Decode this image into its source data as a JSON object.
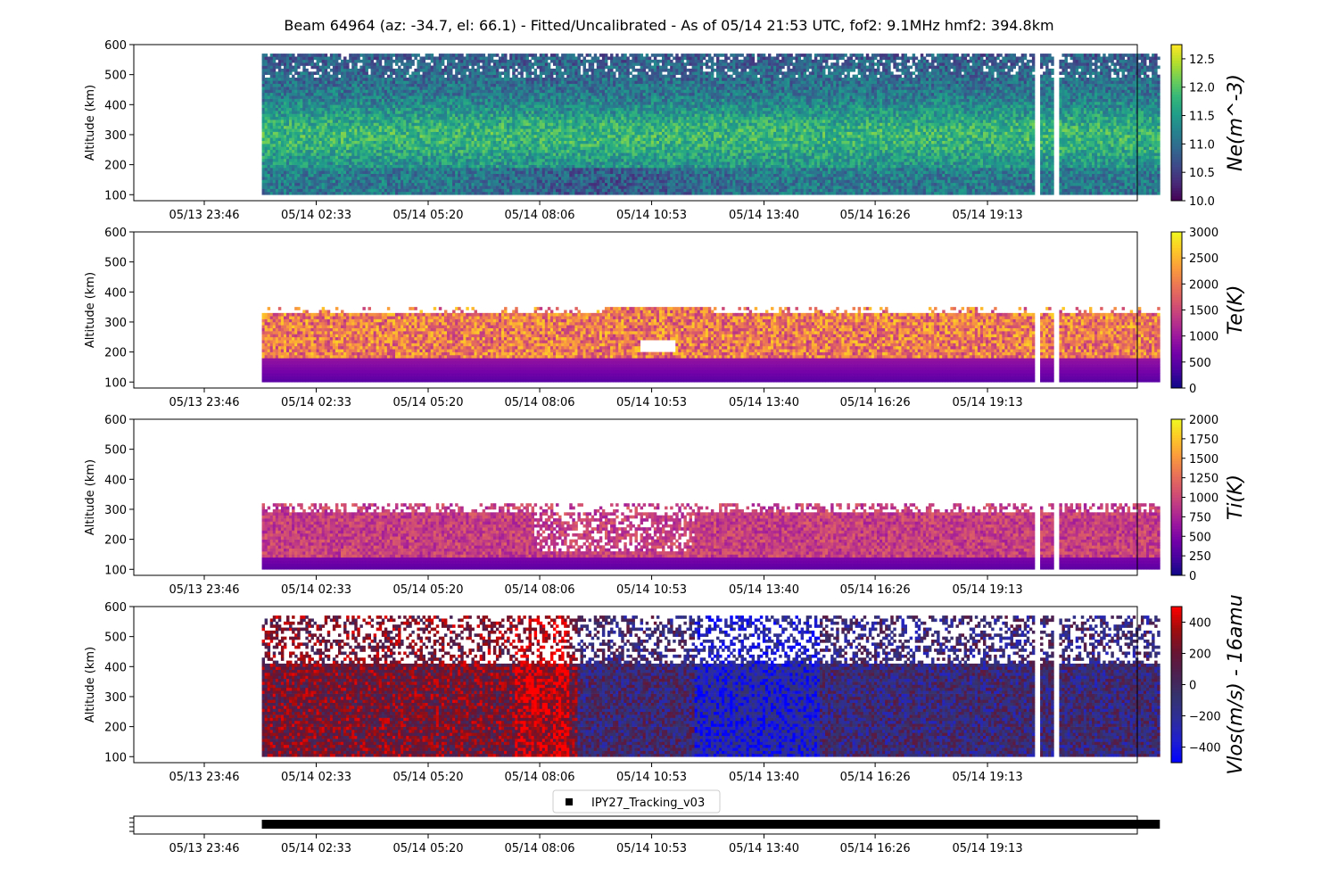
{
  "title": "Beam 64964 (az: -34.7, el: 66.1) - Fitted/Uncalibrated - As of 05/14 21:53 UTC, fof2: 9.1MHz  hmf2: 394.8km",
  "colors": {
    "viridis": [
      "#440154",
      "#482878",
      "#3e4989",
      "#31688e",
      "#26828e",
      "#1f9e89",
      "#35b779",
      "#6ece58",
      "#b5de2b",
      "#fde725"
    ],
    "plasma": [
      "#0d0887",
      "#46039f",
      "#7201a8",
      "#9c179e",
      "#bd3786",
      "#d8576b",
      "#ed7953",
      "#fb9f3a",
      "#fdca26",
      "#f0f921"
    ],
    "seismic_dark": [
      "#0000ff",
      "#1f1fd0",
      "#2e2e99",
      "#35336e",
      "#4d2050",
      "#6a1431",
      "#a00d0d",
      "#ff0000"
    ]
  },
  "chart_data": [
    {
      "type": "heatmap",
      "id": "ne",
      "ylabel": "Altitude (km)",
      "ylim": [
        80,
        600
      ],
      "yticks": [
        100,
        200,
        300,
        400,
        500,
        600
      ],
      "x_tick_labels": [
        "05/13 23:46",
        "05/14 02:33",
        "05/14 05:20",
        "05/14 08:06",
        "05/14 10:53",
        "05/14 13:40",
        "05/14 16:26",
        "05/14 19:13"
      ],
      "data_time_range_hours": [
        1.2,
        23.5
      ],
      "data_alt_range_km": [
        100,
        565
      ],
      "colorbar": {
        "label": "Ne(m^-3)",
        "range": [
          10.0,
          12.75
        ],
        "ticks": [
          "10.0",
          "10.5",
          "11.0",
          "11.5",
          "12.0",
          "12.5"
        ],
        "tick_values": [
          10.0,
          10.5,
          11.0,
          11.5,
          12.0,
          12.5
        ],
        "colormap": "viridis"
      }
    },
    {
      "type": "heatmap",
      "id": "te",
      "ylabel": "Altitude (km)",
      "ylim": [
        80,
        600
      ],
      "yticks": [
        100,
        200,
        300,
        400,
        500,
        600
      ],
      "x_tick_labels": [
        "05/13 23:46",
        "05/14 02:33",
        "05/14 05:20",
        "05/14 08:06",
        "05/14 10:53",
        "05/14 13:40",
        "05/14 16:26",
        "05/14 19:13"
      ],
      "data_time_range_hours": [
        1.2,
        23.5
      ],
      "data_alt_range_km": [
        100,
        345
      ],
      "colorbar": {
        "label": "Te(K)",
        "range": [
          0,
          3000
        ],
        "ticks": [
          "0",
          "500",
          "1000",
          "1500",
          "2000",
          "2500",
          "3000"
        ],
        "tick_values": [
          0,
          500,
          1000,
          1500,
          2000,
          2500,
          3000
        ],
        "colormap": "plasma"
      }
    },
    {
      "type": "heatmap",
      "id": "ti",
      "ylabel": "Altitude (km)",
      "ylim": [
        80,
        600
      ],
      "yticks": [
        100,
        200,
        300,
        400,
        500,
        600
      ],
      "x_tick_labels": [
        "05/13 23:46",
        "05/14 02:33",
        "05/14 05:20",
        "05/14 08:06",
        "05/14 10:53",
        "05/14 13:40",
        "05/14 16:26",
        "05/14 19:13"
      ],
      "data_time_range_hours": [
        1.2,
        23.5
      ],
      "data_alt_range_km": [
        100,
        320
      ],
      "colorbar": {
        "label": "Ti(K)",
        "range": [
          0,
          2000
        ],
        "ticks": [
          "0",
          "250",
          "500",
          "750",
          "1000",
          "1250",
          "1500",
          "1750",
          "2000"
        ],
        "tick_values": [
          0,
          250,
          500,
          750,
          1000,
          1250,
          1500,
          1750,
          2000
        ],
        "colormap": "plasma"
      }
    },
    {
      "type": "heatmap",
      "id": "vlos",
      "ylabel": "Altitude (km)",
      "ylim": [
        80,
        600
      ],
      "yticks": [
        100,
        200,
        300,
        400,
        500,
        600
      ],
      "x_tick_labels": [
        "05/13 23:46",
        "05/14 02:33",
        "05/14 05:20",
        "05/14 08:06",
        "05/14 10:53",
        "05/14 13:40",
        "05/14 16:26",
        "05/14 19:13"
      ],
      "data_time_range_hours": [
        1.2,
        23.5
      ],
      "data_alt_range_km": [
        100,
        565
      ],
      "colorbar": {
        "label": "Vlos(m/s) - 16amu",
        "range": [
          -500,
          500
        ],
        "ticks": [
          "400",
          "200",
          "0",
          "−200",
          "−400"
        ],
        "tick_values": [
          400,
          200,
          0,
          -200,
          -400
        ],
        "colormap": "seismic_dark"
      }
    },
    {
      "type": "scatter",
      "id": "mode",
      "legend": [
        "IPY27_Tracking_v03"
      ],
      "legend_placement": "top-center",
      "x_tick_labels": [
        "05/13 23:46",
        "05/14 02:33",
        "05/14 05:20",
        "05/14 08:06",
        "05/14 10:53",
        "05/14 13:40",
        "05/14 16:26",
        "05/14 19:13"
      ],
      "series": [
        {
          "name": "IPY27_Tracking_v03",
          "x_range_hours": [
            1.2,
            23.5
          ]
        }
      ]
    }
  ]
}
